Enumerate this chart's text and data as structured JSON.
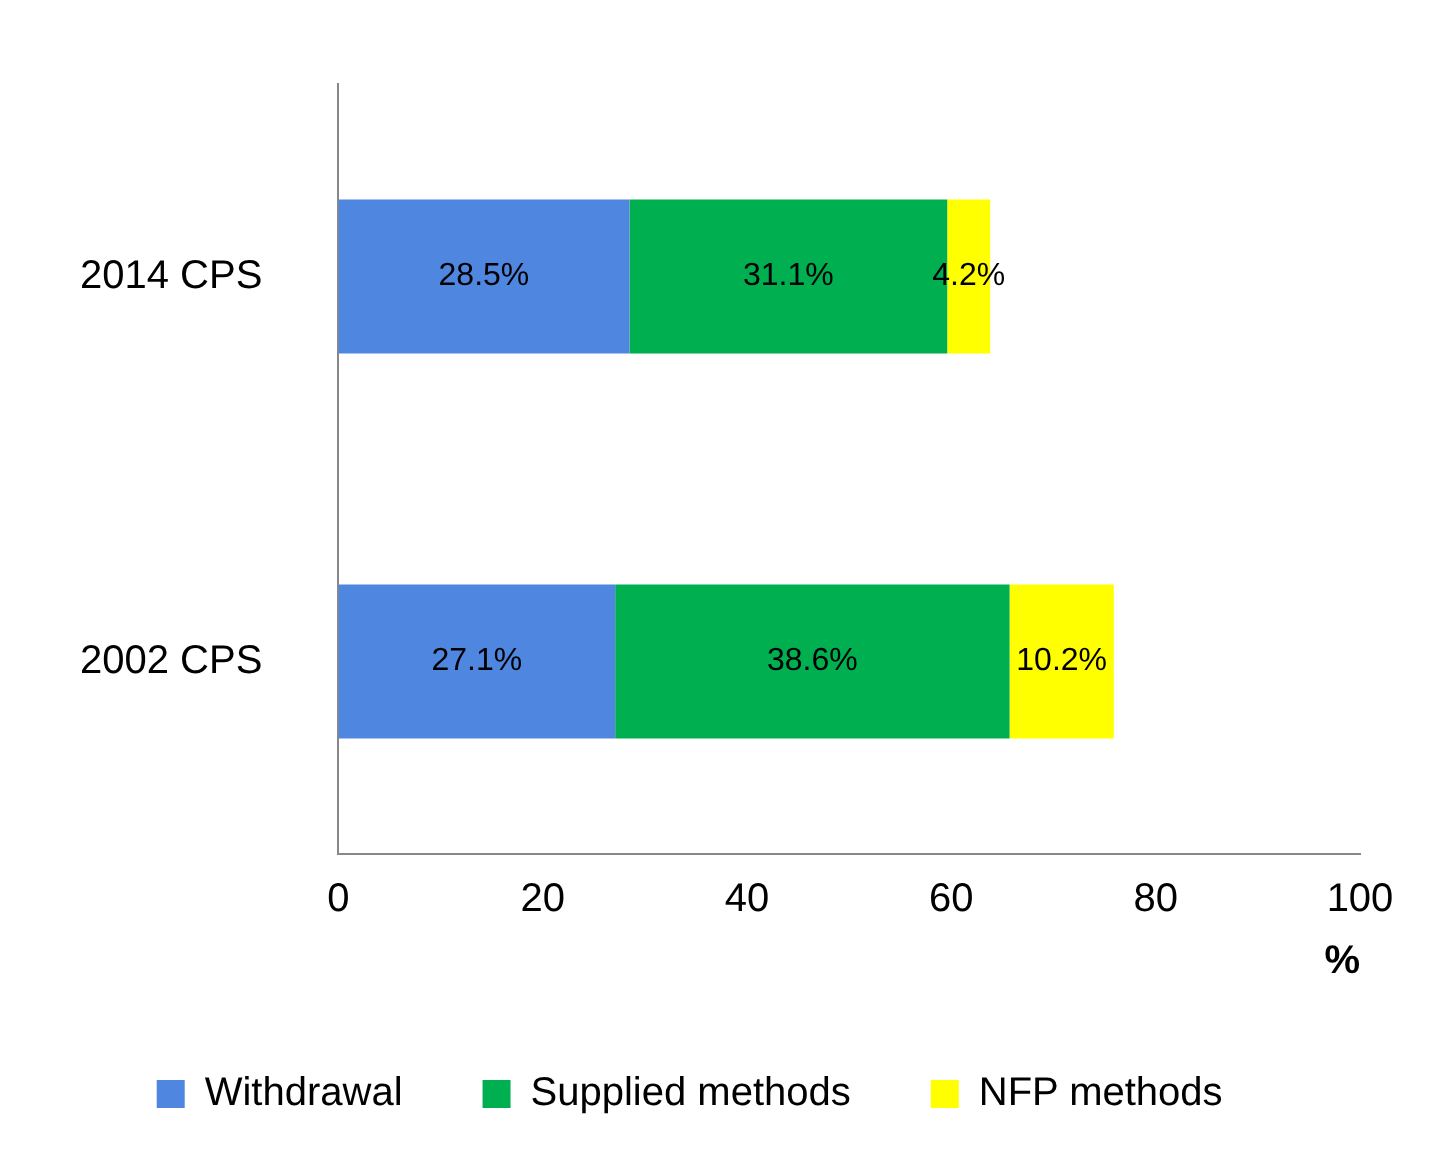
{
  "chart_data": {
    "type": "bar",
    "orientation": "horizontal",
    "stacked": true,
    "categories": [
      "2014 CPS",
      "2002 CPS"
    ],
    "series": [
      {
        "name": "Withdrawal",
        "color": "#4f86e0",
        "values": [
          28.5,
          27.1
        ],
        "value_labels": [
          "28.5%",
          "27.1%"
        ]
      },
      {
        "name": "Supplied methods",
        "color": "#00b050",
        "values": [
          31.1,
          38.6
        ],
        "value_labels": [
          "31.1%",
          "38.6%"
        ]
      },
      {
        "name": "NFP methods",
        "color": "#ffff00",
        "values": [
          4.2,
          10.2
        ],
        "value_labels": [
          "4.2%",
          "10.2%"
        ]
      }
    ],
    "xlim": [
      0,
      100
    ],
    "xticks": [
      0,
      20,
      40,
      60,
      80,
      100
    ],
    "xlabel": "%",
    "grid": false,
    "legend": "bottom"
  }
}
